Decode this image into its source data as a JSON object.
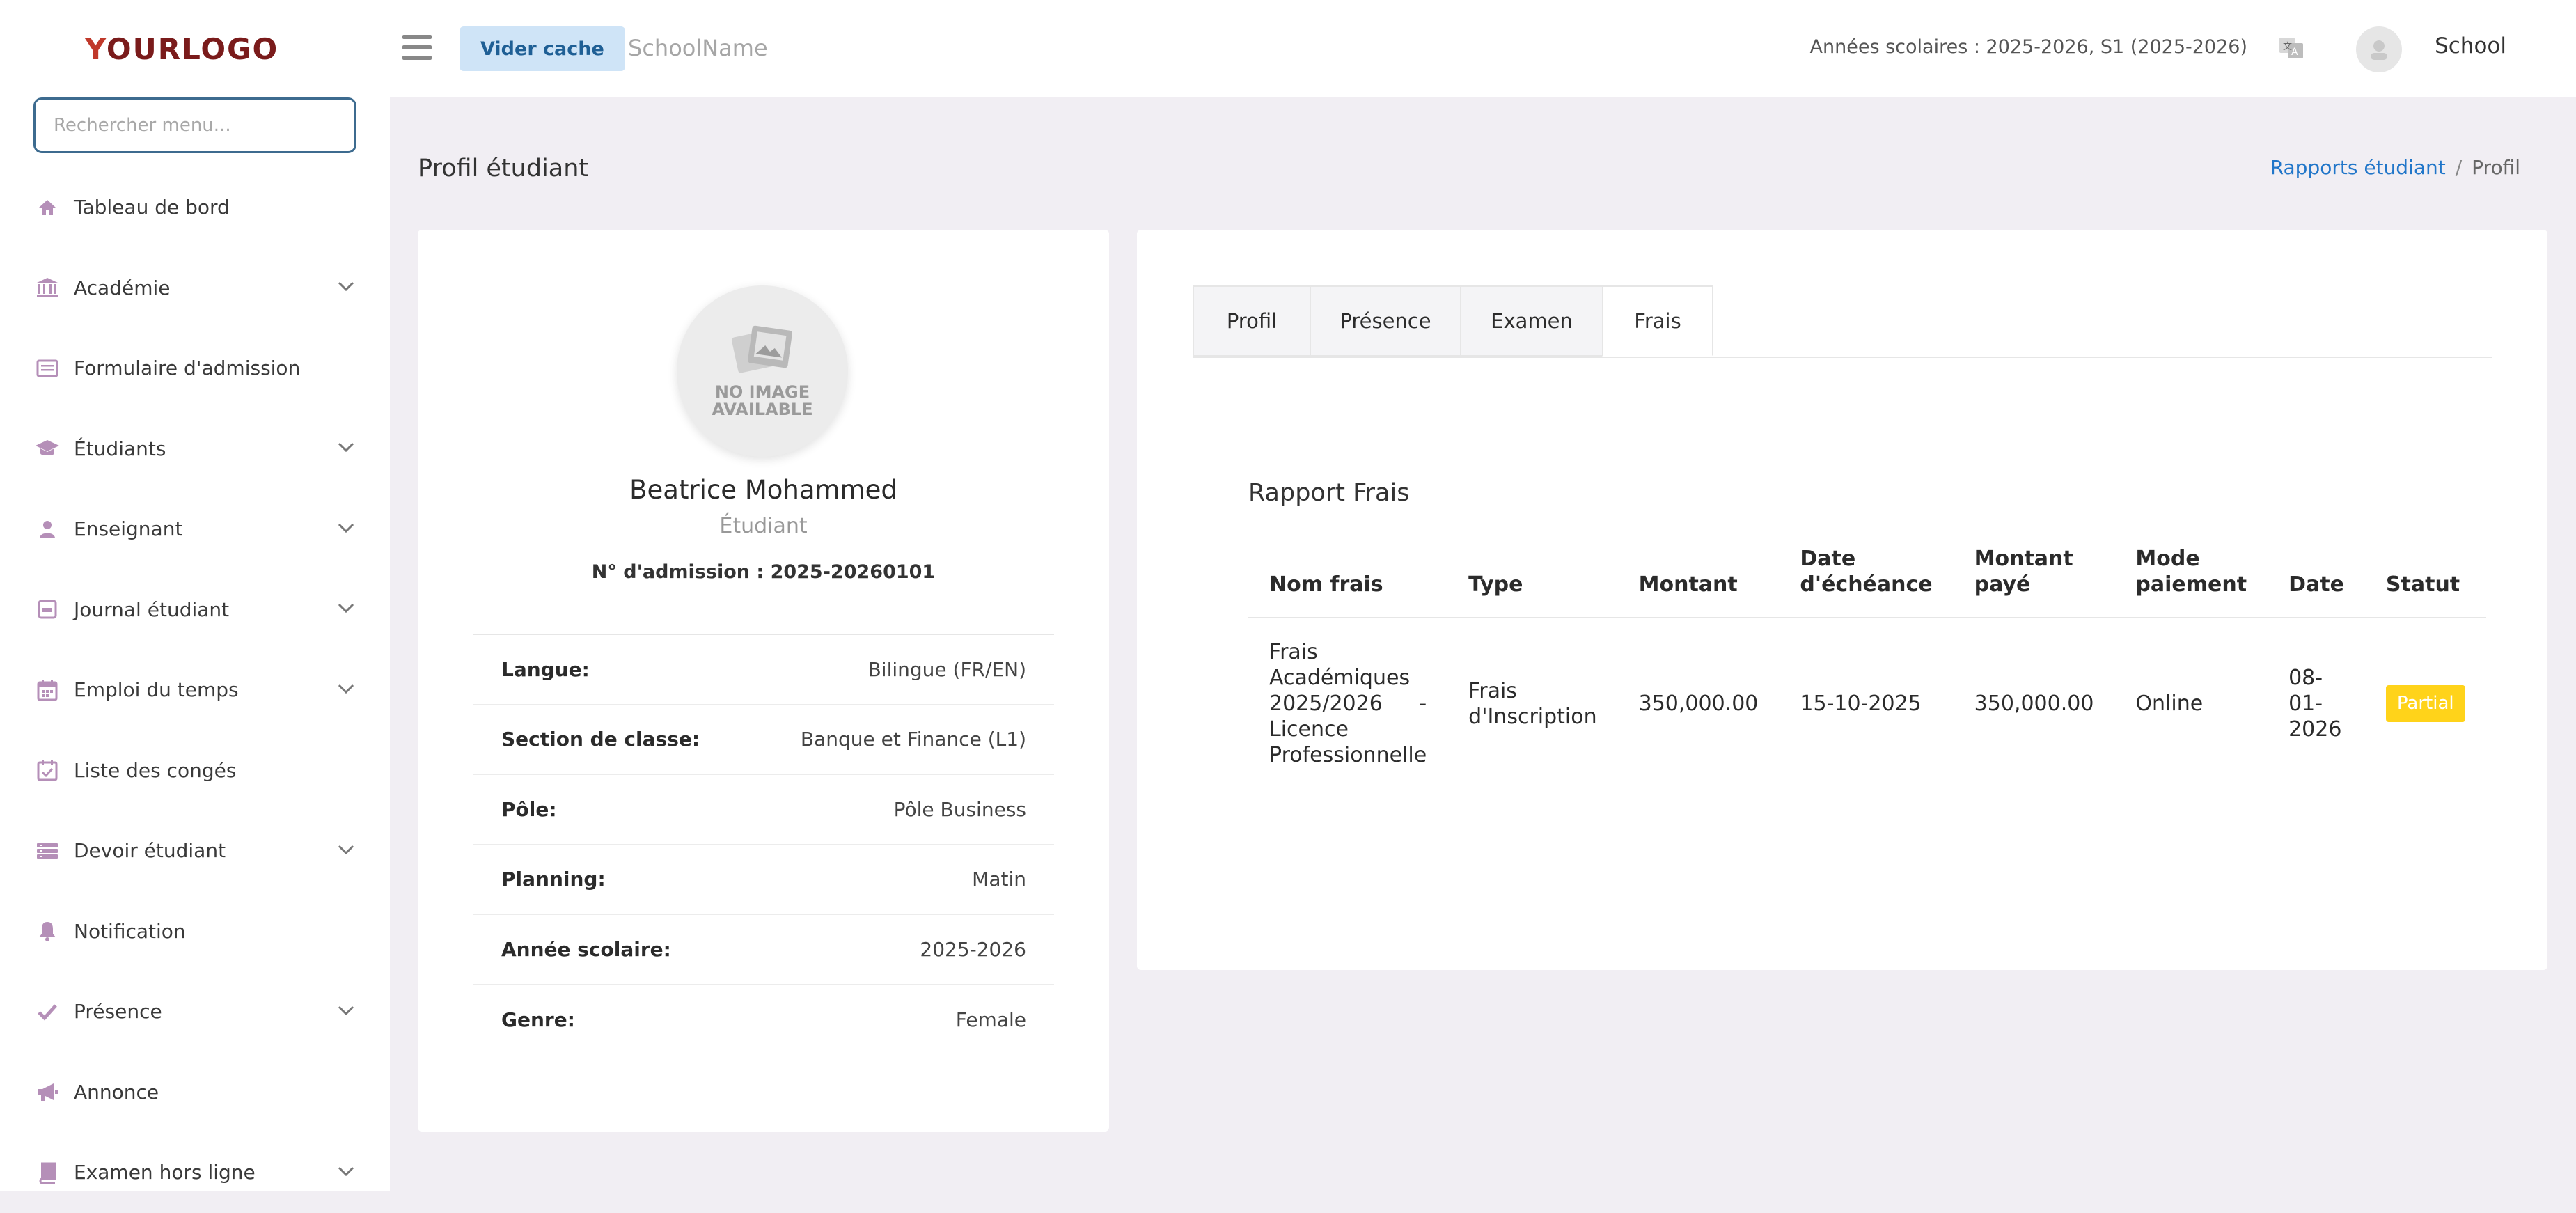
{
  "sidebar": {
    "logo": {
      "first": "Y",
      "rest": "OURLOGO"
    },
    "search_placeholder": "Rechercher menu...",
    "items": [
      {
        "label": "Tableau de bord",
        "icon": "home-icon",
        "has_children": false
      },
      {
        "label": "Académie",
        "icon": "bank-icon",
        "has_children": true
      },
      {
        "label": "Formulaire d'admission",
        "icon": "form-icon",
        "has_children": false
      },
      {
        "label": "Étudiants",
        "icon": "graduation-cap-icon",
        "has_children": true
      },
      {
        "label": "Enseignant",
        "icon": "user-icon",
        "has_children": true
      },
      {
        "label": "Journal étudiant",
        "icon": "journal-icon",
        "has_children": true
      },
      {
        "label": "Emploi du temps",
        "icon": "calendar-icon",
        "has_children": true
      },
      {
        "label": "Liste des congés",
        "icon": "calendar-check-icon",
        "has_children": false
      },
      {
        "label": "Devoir étudiant",
        "icon": "list-icon",
        "has_children": true
      },
      {
        "label": "Notification",
        "icon": "bell-icon",
        "has_children": false
      },
      {
        "label": "Présence",
        "icon": "check-icon",
        "has_children": true
      },
      {
        "label": "Annonce",
        "icon": "megaphone-icon",
        "has_children": false
      },
      {
        "label": "Examen hors ligne",
        "icon": "book-icon",
        "has_children": true
      }
    ]
  },
  "topbar": {
    "cache_button": "Vider cache",
    "school_name": "SchoolName",
    "academic_years": "Années scolaires : 2025-2026, S1 (2025-2026)",
    "user_name": "School"
  },
  "page": {
    "title": "Profil étudiant",
    "breadcrumb": {
      "link": "Rapports étudiant",
      "separator": "/",
      "current": "Profil"
    }
  },
  "profile": {
    "photo_placeholder": "NO IMAGE\nAVAILABLE",
    "name": "Beatrice Mohammed",
    "role": "Étudiant",
    "admission": "N° d'admission : 2025-20260101",
    "details": [
      {
        "key": "Langue:",
        "value": "Bilingue (FR/EN)"
      },
      {
        "key": "Section de classe:",
        "value": "Banque et Finance (L1)"
      },
      {
        "key": "Pôle:",
        "value": "Pôle Business"
      },
      {
        "key": "Planning:",
        "value": "Matin"
      },
      {
        "key": "Année scolaire:",
        "value": "2025-2026"
      },
      {
        "key": "Genre:",
        "value": "Female"
      }
    ]
  },
  "report": {
    "tabs": [
      "Profil",
      "Présence",
      "Examen",
      "Frais"
    ],
    "active_tab": "Frais",
    "title": "Rapport Frais",
    "columns": [
      "Nom frais",
      "Type",
      "Montant",
      "Date d'échéance",
      "Montant payé",
      "Mode paiement",
      "Date",
      "Statut"
    ],
    "rows": [
      {
        "nom": "Frais Académiques 2025/2026 - Licence Professionnelle",
        "type": "Frais d'Inscription",
        "montant": "350,000.00",
        "echeance": "15-10-2025",
        "paye": "350,000.00",
        "mode": "Online",
        "date": "08-01-2026",
        "statut": "Partial",
        "statut_color": "#ffd31a"
      }
    ]
  }
}
